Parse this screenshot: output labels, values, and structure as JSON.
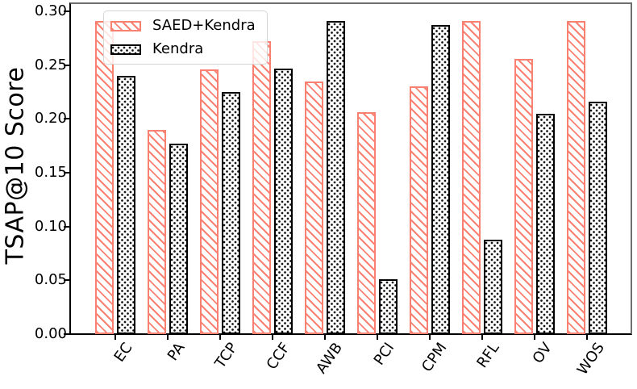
{
  "figure": {
    "background": "#ffffff"
  },
  "colors": {
    "saed_accent": "#fa8072",
    "kendra_accent": "#000000",
    "legend_border": "#d5d5d5",
    "spine_dark": "#000000",
    "spine_light": "#6f6f6f"
  },
  "chart_data": {
    "type": "bar",
    "title": "",
    "xlabel": "",
    "ylabel": "TSAP@10 Score",
    "categories": [
      "EC",
      "PA",
      "TCP",
      "CCF",
      "AWB",
      "PCI",
      "CPM",
      "RFL",
      "OV",
      "WOS"
    ],
    "series": [
      {
        "name": "SAED+Kendra",
        "color": "#fa8072",
        "hatch": "diagonal",
        "values": [
          0.291,
          0.19,
          0.246,
          0.272,
          0.235,
          0.206,
          0.23,
          0.291,
          0.256,
          0.291
        ]
      },
      {
        "name": "Kendra",
        "color": "#000000",
        "hatch": "dots",
        "values": [
          0.24,
          0.177,
          0.225,
          0.247,
          0.291,
          0.051,
          0.287,
          0.088,
          0.205,
          0.216
        ]
      }
    ],
    "ylim": [
      0,
      0.308
    ],
    "yticks": [
      0.0,
      0.05,
      0.1,
      0.15,
      0.2,
      0.25,
      0.3
    ],
    "ytick_labels": [
      "0.00",
      "0.05",
      "0.10",
      "0.15",
      "0.20",
      "0.25",
      "0.30"
    ],
    "legend_position": "upper-left",
    "grid": false
  }
}
